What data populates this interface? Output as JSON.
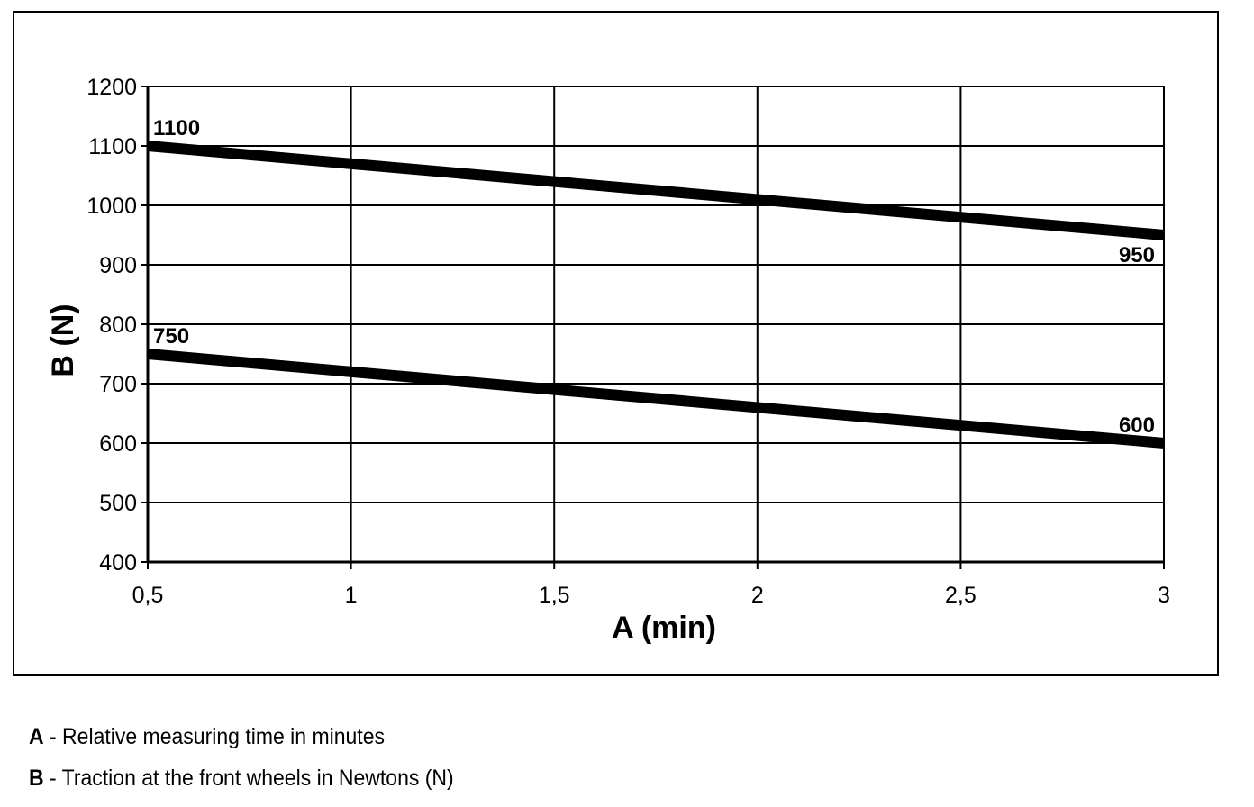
{
  "chart_data": {
    "type": "line",
    "xlabel": "A (min)",
    "ylabel": "B (N)",
    "xlim": [
      0.5,
      3
    ],
    "ylim": [
      400,
      1200
    ],
    "x_ticks": [
      "0,5",
      "1",
      "1,5",
      "2",
      "2,5",
      "3"
    ],
    "y_ticks": [
      "400",
      "500",
      "600",
      "700",
      "800",
      "900",
      "1000",
      "1100",
      "1200"
    ],
    "grid": true,
    "series": [
      {
        "x": [
          0.5,
          3
        ],
        "y": [
          1100,
          950
        ],
        "start_label": "1100",
        "end_label": "950"
      },
      {
        "x": [
          0.5,
          3
        ],
        "y": [
          750,
          600
        ],
        "start_label": "750",
        "end_label": "600"
      }
    ]
  },
  "legend": [
    {
      "key": "A",
      "separator": " - ",
      "text": "Relative measuring time in minutes"
    },
    {
      "key": "B",
      "separator": " - ",
      "text": "Traction at the front wheels in Newtons (N)"
    }
  ]
}
